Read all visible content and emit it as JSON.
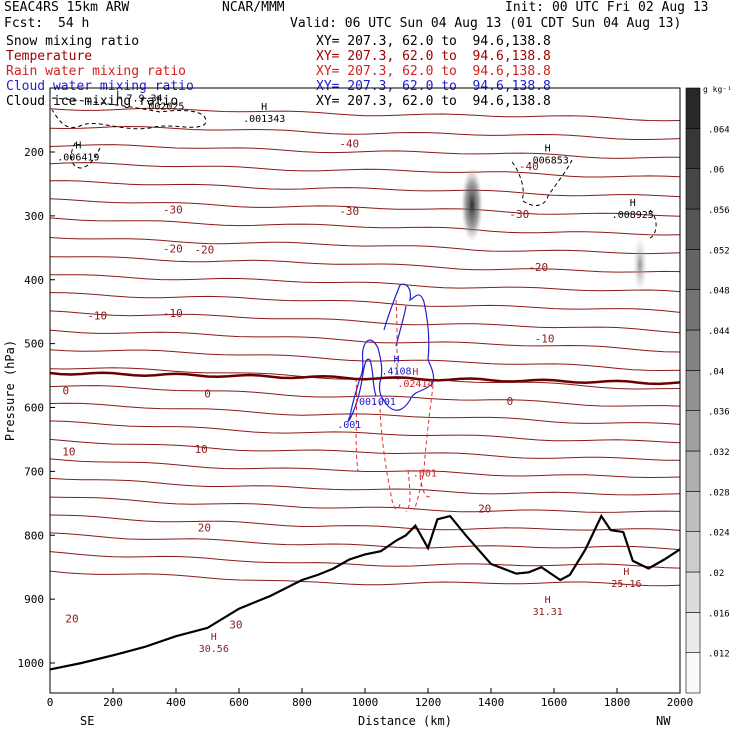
{
  "header": {
    "model": "SEAC4RS 15km ARW",
    "center": "NCAR/MMM",
    "init": "Init: 00 UTC Fri 02 Aug 13",
    "fcst_label": "Fcst:",
    "fcst_value": "54 h",
    "valid": "Valid: 06 UTC Sun 04 Aug 13 (01 CDT Sun 04 Aug 13)"
  },
  "fields": [
    {
      "label": "Snow mixing ratio",
      "color": "#000000",
      "xy": ""
    },
    {
      "label": "Temperature",
      "color": "#a00000",
      "xy": "XY= 207.3, 62.0 to  94.6,138.8"
    },
    {
      "label": "Rain water mixing ratio",
      "color": "#d42020",
      "xy": "XY= 207.3, 62.0 to  94.6,138.8"
    },
    {
      "label": "Cloud water mixing ratio",
      "color": "#2020d0",
      "xy": "XY= 207.3, 62.0 to  94.6,138.8"
    },
    {
      "label": "Cloud ice mixing ratio",
      "color": "#000000",
      "xy": "XY= 207.3, 62.0 to  94.6,138.8"
    }
  ],
  "xy_top": "XY= 207.3, 62.0 to  94.6,138.8",
  "chart_data": {
    "type": "cross-section",
    "xlabel": "Distance (km)",
    "ylabel": "Pressure (hPa)",
    "xlim": [
      0,
      2000
    ],
    "ylim": [
      1000,
      100
    ],
    "y_reversed": true,
    "x_ticks": [
      0,
      200,
      400,
      600,
      800,
      1000,
      1200,
      1400,
      1600,
      1800,
      2000
    ],
    "y_ticks": [
      200,
      300,
      400,
      500,
      600,
      700,
      800,
      900,
      1000
    ],
    "x_end_labels": {
      "left": "SE",
      "right": "NW"
    },
    "colorbar": {
      "unit": "g kg⁻¹",
      "ticks": [
        ".012",
        ".016",
        ".02",
        ".024",
        ".028",
        ".032",
        ".036",
        ".04",
        ".044",
        ".048",
        ".052",
        ".056",
        ".06",
        ".064"
      ]
    },
    "temperature_labels": [
      {
        "x": 950,
        "p": 187,
        "text": "-40"
      },
      {
        "x": 1520,
        "p": 222,
        "text": "-40"
      },
      {
        "x": 390,
        "p": 290,
        "text": "-30"
      },
      {
        "x": 950,
        "p": 292,
        "text": "-30"
      },
      {
        "x": 1490,
        "p": 297,
        "text": "-30"
      },
      {
        "x": 390,
        "p": 351,
        "text": "-20"
      },
      {
        "x": 490,
        "p": 353,
        "text": "-20"
      },
      {
        "x": 1550,
        "p": 380,
        "text": "-20"
      },
      {
        "x": 150,
        "p": 456,
        "text": "-10"
      },
      {
        "x": 390,
        "p": 452,
        "text": "-10"
      },
      {
        "x": 1570,
        "p": 492,
        "text": "-10"
      },
      {
        "x": 50,
        "p": 573,
        "text": "0"
      },
      {
        "x": 500,
        "p": 578,
        "text": "0"
      },
      {
        "x": 1460,
        "p": 590,
        "text": "0"
      },
      {
        "x": 60,
        "p": 669,
        "text": "10"
      },
      {
        "x": 480,
        "p": 665,
        "text": "10"
      },
      {
        "x": 1380,
        "p": 758,
        "text": "20"
      },
      {
        "x": 490,
        "p": 788,
        "text": "20"
      },
      {
        "x": 70,
        "p": 930,
        "text": "20"
      },
      {
        "x": 590,
        "p": 940,
        "text": "30"
      }
    ],
    "annotations": [
      {
        "x": 220,
        "p": 130,
        "marker": "L",
        "text": ""
      },
      {
        "x": 300,
        "p": 118,
        "marker": "",
        "text": "7.9.34"
      },
      {
        "x": 360,
        "p": 130,
        "marker": "",
        "text": ".002025"
      },
      {
        "x": 90,
        "p": 210,
        "marker": "H",
        "text": ".006419"
      },
      {
        "x": 680,
        "p": 150,
        "marker": "H",
        "text": ".001343"
      },
      {
        "x": 1580,
        "p": 215,
        "marker": "H",
        "text": ".006853"
      },
      {
        "x": 1850,
        "p": 300,
        "marker": "H",
        "text": ".008925"
      },
      {
        "x": 1100,
        "p": 545,
        "marker": "H",
        "text": ".4108"
      },
      {
        "x": 1160,
        "p": 565,
        "marker": "H",
        "text": ".02414"
      },
      {
        "x": 1000,
        "p": 593,
        "marker": "",
        "text": ".001"
      },
      {
        "x": 1060,
        "p": 593,
        "marker": "",
        "text": ".001"
      },
      {
        "x": 950,
        "p": 629,
        "marker": "",
        "text": ".001"
      },
      {
        "x": 1190,
        "p": 705,
        "marker": "",
        "text": ".001"
      },
      {
        "x": 1580,
        "p": 922,
        "marker": "H",
        "text": "31.31"
      },
      {
        "x": 1830,
        "p": 878,
        "marker": "H",
        "text": "25.16"
      },
      {
        "x": 520,
        "p": 980,
        "marker": "H",
        "text": "30.56"
      }
    ],
    "terrain_profile": {
      "x": [
        0,
        100,
        200,
        300,
        400,
        500,
        600,
        700,
        800,
        850,
        900,
        950,
        1000,
        1050,
        1100,
        1130,
        1160,
        1200,
        1230,
        1270,
        1320,
        1400,
        1480,
        1520,
        1560,
        1620,
        1650,
        1700,
        1750,
        1780,
        1820,
        1850,
        1900,
        1950,
        2000
      ],
      "p": [
        1010,
        1000,
        988,
        975,
        958,
        945,
        915,
        895,
        870,
        862,
        852,
        838,
        830,
        825,
        808,
        800,
        785,
        820,
        775,
        770,
        800,
        845,
        860,
        858,
        850,
        870,
        862,
        822,
        770,
        792,
        795,
        840,
        852,
        838,
        822
      ]
    }
  }
}
